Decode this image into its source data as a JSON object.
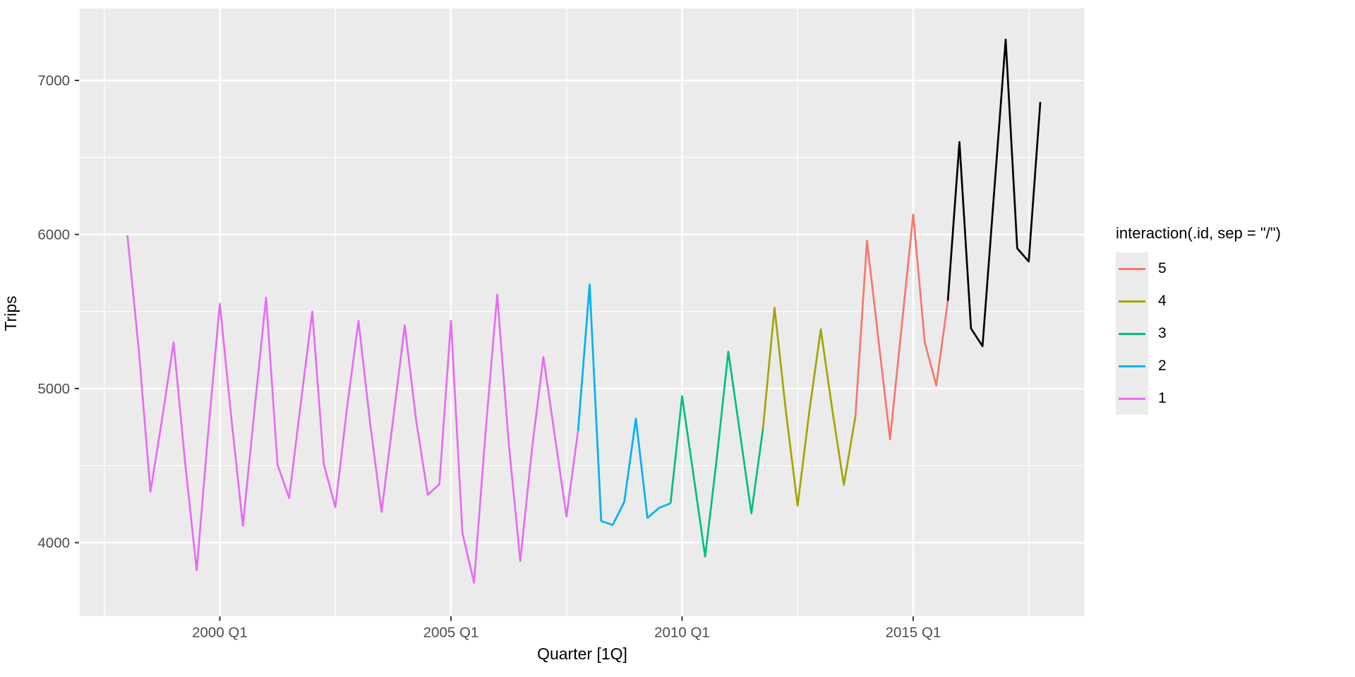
{
  "chart_data": {
    "type": "line",
    "title": "",
    "xlabel": "Quarter [1Q]",
    "ylabel": "Trips",
    "x_start": "1998 Q1",
    "x_end": "2017 Q4",
    "frequency": "quarterly",
    "values": [
      5995,
      5245,
      4330,
      4800,
      5300,
      4520,
      3820,
      4720,
      5550,
      4810,
      4110,
      4860,
      5590,
      4505,
      4290,
      4900,
      5500,
      4510,
      4230,
      4870,
      5440,
      4780,
      4200,
      4800,
      5410,
      4790,
      4310,
      4380,
      5440,
      4060,
      3740,
      4720,
      5610,
      4650,
      3880,
      4600,
      5205,
      4685,
      4170,
      4725,
      5675,
      4140,
      4115,
      4265,
      4805,
      4160,
      4225,
      4255,
      4950,
      4430,
      3910,
      4545,
      5240,
      4715,
      4190,
      4740,
      5525,
      4840,
      4240,
      4845,
      5385,
      4860,
      4375,
      4820,
      5960,
      5310,
      4670,
      5400,
      6130,
      5300,
      5020,
      5570,
      6600,
      5390,
      5275,
      6270,
      7265,
      5910,
      5825,
      6860
    ],
    "segments": [
      {
        "id": "5",
        "color": "#F8766D",
        "from": 63,
        "to": 71
      },
      {
        "id": "4",
        "color": "#A3A500",
        "from": 55,
        "to": 63
      },
      {
        "id": "3",
        "color": "#00BF7D",
        "from": 47,
        "to": 55
      },
      {
        "id": "2",
        "color": "#00B0F6",
        "from": 39,
        "to": 47
      },
      {
        "id": "1",
        "color": "#E76BF3",
        "from": 0,
        "to": 39
      },
      {
        "id": "actual",
        "color": "#000000",
        "from": 71,
        "to": 79
      }
    ],
    "x_ticks": [
      {
        "label": "2000 Q1",
        "quarter_index": 8
      },
      {
        "label": "2005 Q1",
        "quarter_index": 28
      },
      {
        "label": "2010 Q1",
        "quarter_index": 48
      },
      {
        "label": "2015 Q1",
        "quarter_index": 68
      }
    ],
    "x_minor_quarters": [
      -2,
      18,
      38,
      58,
      78
    ],
    "y_ticks": [
      4000,
      5000,
      6000,
      7000
    ],
    "y_minor": [
      4500,
      5500,
      6500
    ],
    "ylim": [
      3524,
      7467
    ],
    "xlim_quarters": [
      -4.12,
      82.81
    ],
    "grid": true,
    "legend_position": "right",
    "panel_background": "#EBEBEB",
    "grid_color": "#FFFFFF",
    "tick_color": "#333333",
    "tick_label_color": "#4D4D4D",
    "line_width": 2.7
  },
  "legend": {
    "title": "interaction(.id, sep = \"/\")",
    "entries": [
      {
        "label": "5",
        "color": "#F8766D"
      },
      {
        "label": "4",
        "color": "#A3A500"
      },
      {
        "label": "3",
        "color": "#00BF7D"
      },
      {
        "label": "2",
        "color": "#00B0F6"
      },
      {
        "label": "1",
        "color": "#E76BF3"
      }
    ]
  },
  "axes": {
    "x_title": "Quarter [1Q]",
    "y_title": "Trips"
  }
}
